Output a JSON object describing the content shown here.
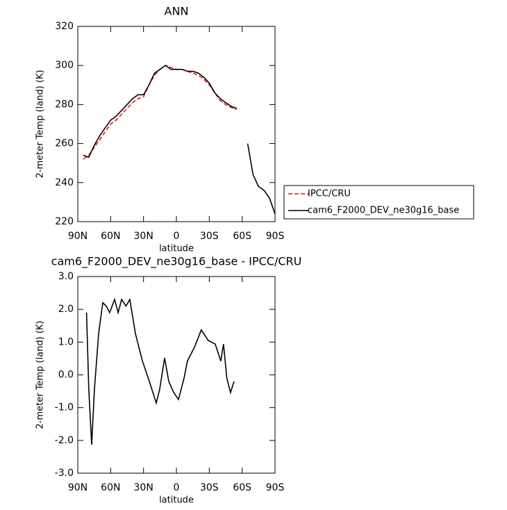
{
  "chart_data": [
    {
      "type": "line",
      "title": "ANN",
      "xlabel": "latitude",
      "ylabel": "2-meter Temp (land) (K)",
      "x": [
        85,
        80,
        75,
        70,
        65,
        60,
        55,
        50,
        45,
        40,
        35,
        30,
        25,
        20,
        15,
        10,
        5,
        0,
        -5,
        -10,
        -15,
        -20,
        -25,
        -30,
        -35,
        -40,
        -45,
        -50,
        -55,
        -60,
        -65,
        -70,
        -75,
        -80,
        -85,
        -90
      ],
      "series": [
        {
          "name": "IPCC/CRU",
          "color": "#e8141a",
          "style": "dashed",
          "values": [
            252,
            254,
            258,
            262,
            266,
            270,
            272,
            275,
            278,
            281,
            283,
            284,
            290,
            295,
            298,
            300,
            299,
            298,
            298,
            297,
            296,
            295,
            293,
            290,
            286,
            282,
            280,
            278.5,
            277.5,
            null,
            null,
            null,
            null,
            null,
            null,
            null
          ]
        },
        {
          "name": "cam6_F2000_DEV_ne30g16_base",
          "color": "#000000",
          "style": "solid",
          "values": [
            254,
            253,
            259,
            264,
            268,
            272,
            274,
            277,
            280,
            283,
            285,
            285,
            290,
            296,
            298,
            300,
            298,
            298,
            298,
            297,
            297,
            296,
            294,
            291,
            286,
            283,
            281,
            279,
            278,
            null,
            260,
            244,
            238,
            236,
            232,
            224
          ]
        }
      ],
      "xlim": [
        90,
        -90
      ],
      "xticks": [
        {
          "value": 90,
          "label": "90N"
        },
        {
          "value": 60,
          "label": "60N"
        },
        {
          "value": 30,
          "label": "30N"
        },
        0,
        {
          "value": -30,
          "label": "30S"
        },
        {
          "value": -60,
          "label": "60S"
        },
        {
          "value": -90,
          "label": "90S"
        }
      ],
      "ylim": [
        220,
        320
      ],
      "yticks": [
        220,
        240,
        260,
        280,
        300,
        320
      ],
      "legend": "outside-right"
    },
    {
      "type": "line",
      "title": "cam6_F2000_DEV_ne30g16_base - IPCC/CRU",
      "xlabel": "latitude",
      "ylabel": "2-meter Temp (land) (K)",
      "x": [
        82,
        80,
        77.3,
        74.8,
        71,
        67.2,
        64,
        60.9,
        56.4,
        53.2,
        50,
        46,
        42.5,
        37.4,
        34.2,
        31,
        24.7,
        18.4,
        15.2,
        10.8,
        7,
        2.5,
        -1.9,
        -7,
        -10,
        -16.4,
        -22.7,
        -29,
        -35.4,
        -40.5,
        -43,
        -46,
        -49.4,
        -52.6
      ],
      "series": [
        {
          "name": "cam6_F2000_DEV_ne30g16_base - IPCC/CRU",
          "color": "#000000",
          "style": "solid",
          "values": [
            1.9,
            -0.43,
            -2.13,
            -0.43,
            1.26,
            2.2,
            2.1,
            1.9,
            2.3,
            1.9,
            2.3,
            2.1,
            2.3,
            1.26,
            0.84,
            0.42,
            -0.2,
            -0.86,
            -0.43,
            0.52,
            -0.2,
            -0.54,
            -0.75,
            -0.1,
            0.42,
            0.84,
            1.37,
            1.05,
            0.94,
            0.42,
            0.94,
            -0.1,
            -0.54,
            -0.2
          ]
        }
      ],
      "xlim": [
        90,
        -90
      ],
      "xticks": [
        {
          "value": 90,
          "label": "90N"
        },
        {
          "value": 60,
          "label": "60N"
        },
        {
          "value": 30,
          "label": "30N"
        },
        0,
        {
          "value": -30,
          "label": "30S"
        },
        {
          "value": -60,
          "label": "60S"
        },
        {
          "value": -90,
          "label": "90S"
        }
      ],
      "ylim": [
        -3,
        3
      ],
      "yticks": [
        {
          "value": -3,
          "label": "-3.0"
        },
        {
          "value": -2,
          "label": "-2.0"
        },
        {
          "value": -1,
          "label": "-1.0"
        },
        {
          "value": 0,
          "label": "0.0"
        },
        {
          "value": 1,
          "label": "1.0"
        },
        {
          "value": 2,
          "label": "2.0"
        },
        {
          "value": 3,
          "label": "3.0"
        }
      ]
    }
  ]
}
